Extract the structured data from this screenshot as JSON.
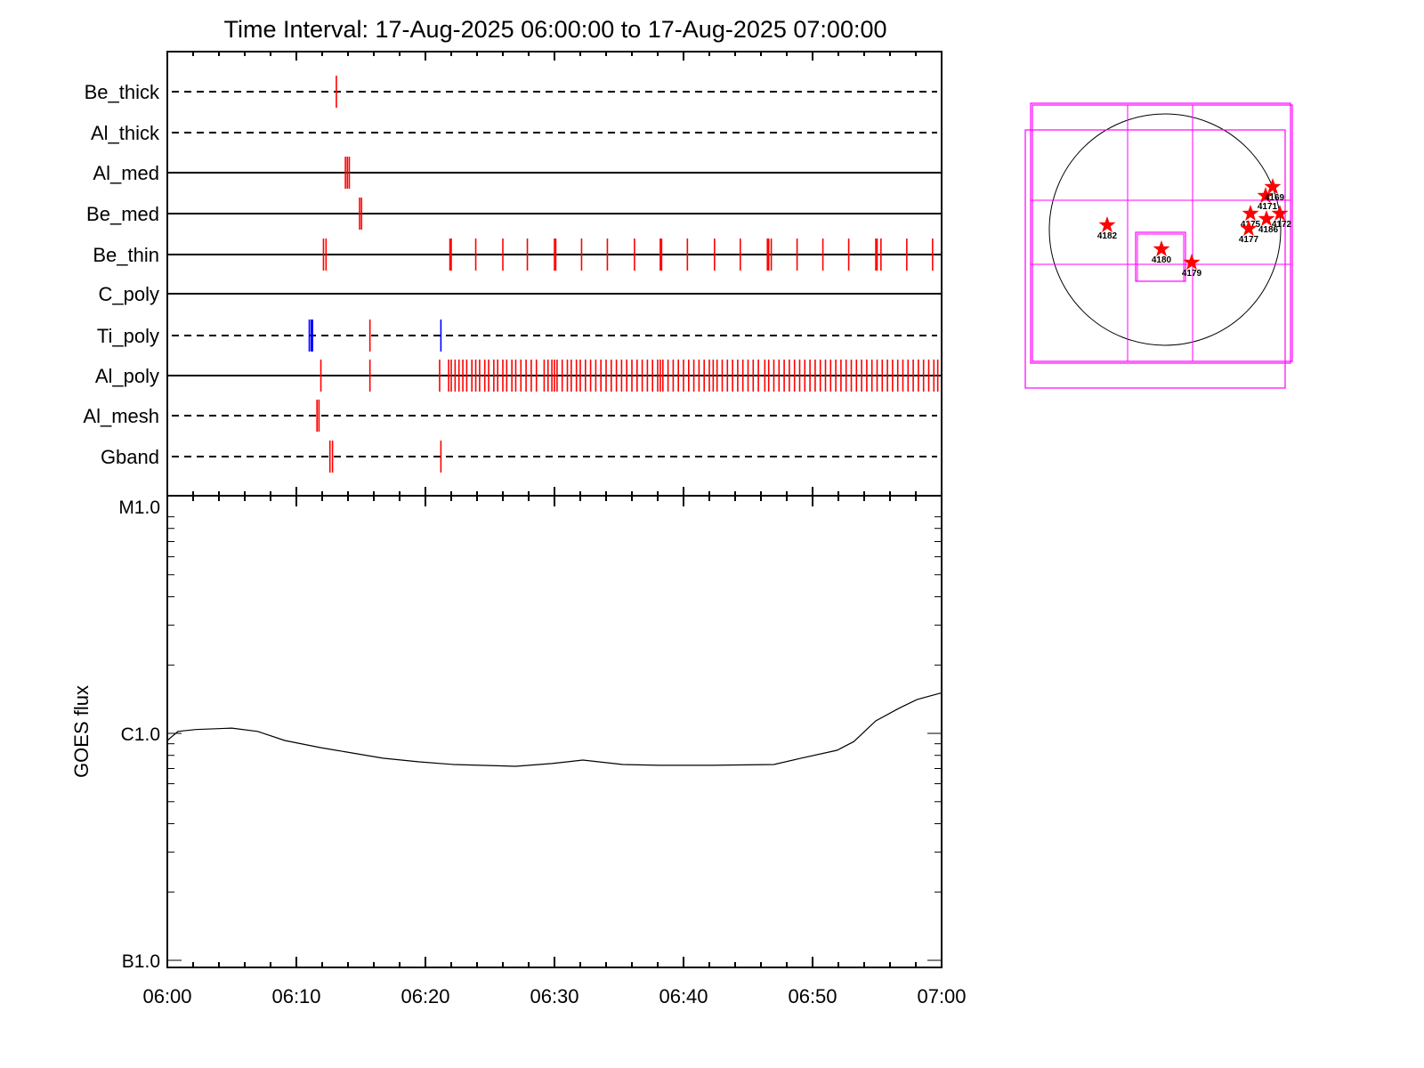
{
  "chart_data": [
    {
      "type": "scatter",
      "title": "Time Interval: 17-Aug-2025 06:00:00 to 17-Aug-2025 07:00:00",
      "xlabel": "",
      "xlim_minutes": [
        0,
        60
      ],
      "x_tick_labels": [
        "06:00",
        "06:10",
        "06:20",
        "06:30",
        "06:40",
        "06:50",
        "07:00"
      ],
      "rows": [
        {
          "label": "Be_thick",
          "line": "dashed",
          "events": [
            {
              "t": 13.1,
              "color": "#ff0000"
            }
          ]
        },
        {
          "label": "Al_thick",
          "line": "dashed",
          "events": []
        },
        {
          "label": "Al_med",
          "line": "solid",
          "events": [
            {
              "t": 13.8,
              "color": "#ff0000"
            },
            {
              "t": 13.95,
              "color": "#ff0000"
            },
            {
              "t": 14.1,
              "color": "#ff0000"
            }
          ]
        },
        {
          "label": "Be_med",
          "line": "solid",
          "events": [
            {
              "t": 14.9,
              "color": "#ff0000"
            },
            {
              "t": 15.05,
              "color": "#ff0000"
            }
          ]
        },
        {
          "label": "Be_thin",
          "line": "solid",
          "events": [
            {
              "t": 12.1,
              "color": "#ff0000"
            },
            {
              "t": 12.3,
              "color": "#ff0000"
            },
            {
              "t": 21.9,
              "color": "#ff0000"
            },
            {
              "t": 22.0,
              "color": "#ff0000"
            },
            {
              "t": 23.9,
              "color": "#ff0000"
            },
            {
              "t": 26.0,
              "color": "#ff0000"
            },
            {
              "t": 27.9,
              "color": "#ff0000"
            },
            {
              "t": 30.0,
              "color": "#ff0000"
            },
            {
              "t": 30.1,
              "color": "#ff0000"
            },
            {
              "t": 32.1,
              "color": "#ff0000"
            },
            {
              "t": 34.1,
              "color": "#ff0000"
            },
            {
              "t": 36.2,
              "color": "#ff0000"
            },
            {
              "t": 38.2,
              "color": "#ff0000"
            },
            {
              "t": 38.3,
              "color": "#ff0000"
            },
            {
              "t": 40.3,
              "color": "#ff0000"
            },
            {
              "t": 42.4,
              "color": "#ff0000"
            },
            {
              "t": 44.4,
              "color": "#ff0000"
            },
            {
              "t": 46.5,
              "color": "#ff0000"
            },
            {
              "t": 46.6,
              "color": "#ff0000"
            },
            {
              "t": 46.8,
              "color": "#ff0000"
            },
            {
              "t": 48.8,
              "color": "#ff0000"
            },
            {
              "t": 50.8,
              "color": "#ff0000"
            },
            {
              "t": 52.8,
              "color": "#ff0000"
            },
            {
              "t": 54.9,
              "color": "#ff0000"
            },
            {
              "t": 55.0,
              "color": "#ff0000"
            },
            {
              "t": 55.3,
              "color": "#ff0000"
            },
            {
              "t": 57.3,
              "color": "#ff0000"
            },
            {
              "t": 59.3,
              "color": "#ff0000"
            }
          ]
        },
        {
          "label": "C_poly",
          "line": "solid",
          "events": []
        },
        {
          "label": "Ti_poly",
          "line": "dashed",
          "events": [
            {
              "t": 11.0,
              "color": "#0000ff"
            },
            {
              "t": 11.15,
              "color": "#0000ff"
            },
            {
              "t": 11.25,
              "color": "#0000ff"
            },
            {
              "t": 15.7,
              "color": "#ff0000"
            },
            {
              "t": 21.2,
              "color": "#0000ff"
            }
          ]
        },
        {
          "label": "Al_poly",
          "line": "solid",
          "events": [
            {
              "t": 11.9,
              "color": "#ff0000"
            },
            {
              "t": 15.7,
              "color": "#ff0000"
            },
            {
              "t": 21.1,
              "color": "#ff0000"
            },
            {
              "t": 21.8,
              "color": "#ff0000"
            },
            {
              "t": 22.0,
              "color": "#ff0000"
            },
            {
              "t": 22.3,
              "color": "#ff0000"
            },
            {
              "t": 22.6,
              "color": "#ff0000"
            },
            {
              "t": 22.9,
              "color": "#ff0000"
            },
            {
              "t": 23.2,
              "color": "#ff0000"
            },
            {
              "t": 23.6,
              "color": "#ff0000"
            },
            {
              "t": 23.9,
              "color": "#ff0000"
            },
            {
              "t": 24.2,
              "color": "#ff0000"
            },
            {
              "t": 24.6,
              "color": "#ff0000"
            },
            {
              "t": 24.9,
              "color": "#ff0000"
            },
            {
              "t": 25.3,
              "color": "#ff0000"
            },
            {
              "t": 25.6,
              "color": "#ff0000"
            },
            {
              "t": 26.0,
              "color": "#ff0000"
            },
            {
              "t": 26.3,
              "color": "#ff0000"
            },
            {
              "t": 26.7,
              "color": "#ff0000"
            },
            {
              "t": 27.0,
              "color": "#ff0000"
            },
            {
              "t": 27.4,
              "color": "#ff0000"
            },
            {
              "t": 27.8,
              "color": "#ff0000"
            },
            {
              "t": 28.2,
              "color": "#ff0000"
            },
            {
              "t": 28.6,
              "color": "#ff0000"
            },
            {
              "t": 29.2,
              "color": "#ff0000"
            },
            {
              "t": 29.5,
              "color": "#ff0000"
            },
            {
              "t": 29.8,
              "color": "#ff0000"
            },
            {
              "t": 30.0,
              "color": "#ff0000"
            },
            {
              "t": 30.2,
              "color": "#ff0000"
            },
            {
              "t": 30.6,
              "color": "#ff0000"
            },
            {
              "t": 31.0,
              "color": "#ff0000"
            },
            {
              "t": 31.3,
              "color": "#ff0000"
            },
            {
              "t": 31.7,
              "color": "#ff0000"
            },
            {
              "t": 32.0,
              "color": "#ff0000"
            },
            {
              "t": 32.4,
              "color": "#ff0000"
            },
            {
              "t": 32.8,
              "color": "#ff0000"
            },
            {
              "t": 33.2,
              "color": "#ff0000"
            },
            {
              "t": 33.6,
              "color": "#ff0000"
            },
            {
              "t": 34.0,
              "color": "#ff0000"
            },
            {
              "t": 34.4,
              "color": "#ff0000"
            },
            {
              "t": 34.8,
              "color": "#ff0000"
            },
            {
              "t": 35.2,
              "color": "#ff0000"
            },
            {
              "t": 35.6,
              "color": "#ff0000"
            },
            {
              "t": 36.0,
              "color": "#ff0000"
            },
            {
              "t": 36.4,
              "color": "#ff0000"
            },
            {
              "t": 36.8,
              "color": "#ff0000"
            },
            {
              "t": 37.2,
              "color": "#ff0000"
            },
            {
              "t": 37.6,
              "color": "#ff0000"
            },
            {
              "t": 38.0,
              "color": "#ff0000"
            },
            {
              "t": 38.2,
              "color": "#ff0000"
            },
            {
              "t": 38.4,
              "color": "#ff0000"
            },
            {
              "t": 38.8,
              "color": "#ff0000"
            },
            {
              "t": 39.2,
              "color": "#ff0000"
            },
            {
              "t": 39.6,
              "color": "#ff0000"
            },
            {
              "t": 40.0,
              "color": "#ff0000"
            },
            {
              "t": 40.4,
              "color": "#ff0000"
            },
            {
              "t": 40.8,
              "color": "#ff0000"
            },
            {
              "t": 41.2,
              "color": "#ff0000"
            },
            {
              "t": 41.6,
              "color": "#ff0000"
            },
            {
              "t": 42.0,
              "color": "#ff0000"
            },
            {
              "t": 42.3,
              "color": "#ff0000"
            },
            {
              "t": 42.6,
              "color": "#ff0000"
            },
            {
              "t": 43.0,
              "color": "#ff0000"
            },
            {
              "t": 43.4,
              "color": "#ff0000"
            },
            {
              "t": 43.8,
              "color": "#ff0000"
            },
            {
              "t": 44.2,
              "color": "#ff0000"
            },
            {
              "t": 44.6,
              "color": "#ff0000"
            },
            {
              "t": 45.0,
              "color": "#ff0000"
            },
            {
              "t": 45.4,
              "color": "#ff0000"
            },
            {
              "t": 45.8,
              "color": "#ff0000"
            },
            {
              "t": 46.3,
              "color": "#ff0000"
            },
            {
              "t": 46.6,
              "color": "#ff0000"
            },
            {
              "t": 47.0,
              "color": "#ff0000"
            },
            {
              "t": 47.4,
              "color": "#ff0000"
            },
            {
              "t": 47.8,
              "color": "#ff0000"
            },
            {
              "t": 48.2,
              "color": "#ff0000"
            },
            {
              "t": 48.6,
              "color": "#ff0000"
            },
            {
              "t": 49.0,
              "color": "#ff0000"
            },
            {
              "t": 49.4,
              "color": "#ff0000"
            },
            {
              "t": 49.8,
              "color": "#ff0000"
            },
            {
              "t": 50.2,
              "color": "#ff0000"
            },
            {
              "t": 50.6,
              "color": "#ff0000"
            },
            {
              "t": 51.0,
              "color": "#ff0000"
            },
            {
              "t": 51.4,
              "color": "#ff0000"
            },
            {
              "t": 51.8,
              "color": "#ff0000"
            },
            {
              "t": 52.2,
              "color": "#ff0000"
            },
            {
              "t": 52.6,
              "color": "#ff0000"
            },
            {
              "t": 53.0,
              "color": "#ff0000"
            },
            {
              "t": 53.4,
              "color": "#ff0000"
            },
            {
              "t": 53.8,
              "color": "#ff0000"
            },
            {
              "t": 54.2,
              "color": "#ff0000"
            },
            {
              "t": 54.6,
              "color": "#ff0000"
            },
            {
              "t": 55.0,
              "color": "#ff0000"
            },
            {
              "t": 55.4,
              "color": "#ff0000"
            },
            {
              "t": 55.8,
              "color": "#ff0000"
            },
            {
              "t": 56.2,
              "color": "#ff0000"
            },
            {
              "t": 56.6,
              "color": "#ff0000"
            },
            {
              "t": 57.0,
              "color": "#ff0000"
            },
            {
              "t": 57.4,
              "color": "#ff0000"
            },
            {
              "t": 57.8,
              "color": "#ff0000"
            },
            {
              "t": 58.2,
              "color": "#ff0000"
            },
            {
              "t": 58.6,
              "color": "#ff0000"
            },
            {
              "t": 59.0,
              "color": "#ff0000"
            },
            {
              "t": 59.4,
              "color": "#ff0000"
            },
            {
              "t": 59.7,
              "color": "#ff0000"
            }
          ]
        },
        {
          "label": "Al_mesh",
          "line": "dashed",
          "events": [
            {
              "t": 11.6,
              "color": "#ff0000"
            },
            {
              "t": 11.75,
              "color": "#ff0000"
            }
          ]
        },
        {
          "label": "Gband",
          "line": "dashed",
          "events": [
            {
              "t": 12.6,
              "color": "#ff0000"
            },
            {
              "t": 12.8,
              "color": "#ff0000"
            },
            {
              "t": 21.2,
              "color": "#ff0000"
            }
          ]
        }
      ]
    },
    {
      "type": "line",
      "ylabel": "GOES flux",
      "yscale": "log",
      "ylim": [
        1e-07,
        1e-05
      ],
      "y_tick_labels": [
        {
          "value": 1e-05,
          "label": "M1.0"
        },
        {
          "value": 1e-06,
          "label": "C1.0"
        },
        {
          "value": 1e-07,
          "label": "B1.0"
        }
      ],
      "x_minutes": [
        0,
        0.83,
        2.2,
        5.0,
        7.0,
        9.1,
        11.9,
        13.9,
        16.7,
        19.5,
        22.2,
        27.0,
        29.8,
        32.2,
        35.3,
        38.1,
        42.2,
        47.0,
        49.1,
        51.9,
        53.2,
        54.9,
        56.7,
        58.1,
        60.0
      ],
      "flux": [
        9.3e-07,
        1.02e-06,
        1.04e-06,
        1.055e-06,
        1.02e-06,
        9.3e-07,
        8.65e-07,
        8.27e-07,
        7.77e-07,
        7.49e-07,
        7.29e-07,
        7.16e-07,
        7.36e-07,
        7.63e-07,
        7.29e-07,
        7.23e-07,
        7.23e-07,
        7.29e-07,
        7.77e-07,
        8.42e-07,
        9.2e-07,
        1.135e-06,
        1.29e-06,
        1.41e-06,
        1.51e-06
      ],
      "color": "#000000"
    },
    {
      "type": "scatter",
      "title": "",
      "regions": [
        "4182",
        "4180",
        "4179",
        "4175",
        "4177",
        "4186",
        "4172",
        "4171",
        "4169"
      ],
      "marker_color": "#ff0000",
      "fov_color": "#ff00ff"
    }
  ]
}
